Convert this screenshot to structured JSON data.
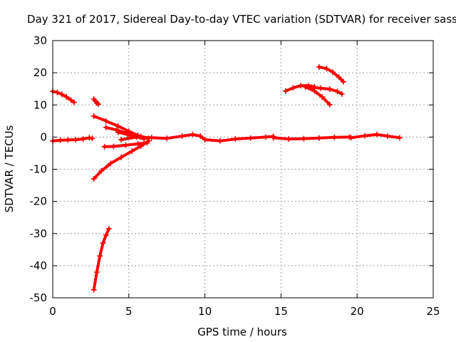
{
  "chart_data": {
    "type": "scatter",
    "title": "Day 321 of 2017, Sidereal Day-to-day VTEC variation (SDTVAR) for receiver sass",
    "xlabel": "GPS time / hours",
    "ylabel": "SDTVAR / TECUs",
    "xlim": [
      0,
      25
    ],
    "ylim": [
      -50,
      30
    ],
    "x_ticks": [
      0,
      5,
      10,
      15,
      20,
      25
    ],
    "y_ticks": [
      -50,
      -40,
      -30,
      -20,
      -10,
      0,
      10,
      20,
      30
    ],
    "x_tick_labels": [
      "0",
      "5",
      "10",
      "15",
      "20",
      "25"
    ],
    "y_tick_labels": [
      "-50",
      "-40",
      "-30",
      "-20",
      "-10",
      "0",
      "10",
      "20",
      "30"
    ],
    "grid": true,
    "marker": "plus",
    "color": "#ff0000",
    "series": [
      {
        "points": [
          [
            0.0,
            -1.2
          ],
          [
            0.5,
            -1.0
          ],
          [
            1.0,
            -0.9
          ],
          [
            1.5,
            -0.8
          ],
          [
            2.0,
            -0.6
          ],
          [
            2.4,
            -0.2
          ],
          [
            2.6,
            -0.4
          ]
        ]
      },
      {
        "points": [
          [
            0.0,
            14.2
          ],
          [
            0.3,
            13.9
          ],
          [
            0.6,
            13.3
          ],
          [
            0.9,
            12.5
          ],
          [
            1.2,
            11.5
          ],
          [
            1.4,
            10.8
          ]
        ]
      },
      {
        "points": [
          [
            2.7,
            11.8
          ],
          [
            2.8,
            11.2
          ],
          [
            2.9,
            10.6
          ],
          [
            3.0,
            10.2
          ]
        ]
      },
      {
        "points": [
          [
            2.7,
            -47.5
          ],
          [
            2.9,
            -42.0
          ],
          [
            3.1,
            -37.0
          ],
          [
            3.3,
            -33.0
          ],
          [
            3.5,
            -30.5
          ],
          [
            3.7,
            -28.5
          ]
        ]
      },
      {
        "points": [
          [
            2.7,
            -13.0
          ],
          [
            3.2,
            -10.5
          ],
          [
            3.8,
            -8.2
          ],
          [
            4.5,
            -6.3
          ],
          [
            5.2,
            -4.4
          ],
          [
            5.8,
            -2.8
          ],
          [
            6.3,
            -1.2
          ]
        ]
      },
      {
        "points": [
          [
            2.7,
            6.5
          ],
          [
            3.5,
            5.0
          ],
          [
            4.3,
            3.4
          ],
          [
            5.0,
            1.8
          ],
          [
            5.6,
            0.5
          ],
          [
            6.0,
            -0.4
          ]
        ]
      },
      {
        "points": [
          [
            3.5,
            3.0
          ],
          [
            4.2,
            2.2
          ],
          [
            5.0,
            1.0
          ],
          [
            5.8,
            0.2
          ],
          [
            6.3,
            -0.4
          ]
        ]
      },
      {
        "points": [
          [
            3.4,
            -3.0
          ],
          [
            4.0,
            -2.9
          ],
          [
            4.8,
            -2.5
          ],
          [
            5.6,
            -2.1
          ],
          [
            6.2,
            -1.8
          ]
        ]
      },
      {
        "points": [
          [
            4.3,
            1.5
          ],
          [
            4.9,
            0.8
          ],
          [
            5.5,
            0.1
          ],
          [
            6.0,
            -0.6
          ]
        ]
      },
      {
        "points": [
          [
            4.5,
            -0.8
          ],
          [
            5.5,
            0.0
          ],
          [
            6.5,
            -0.2
          ],
          [
            7.5,
            -0.4
          ],
          [
            8.5,
            0.3
          ],
          [
            9.2,
            0.8
          ],
          [
            9.7,
            0.3
          ],
          [
            10.0,
            -0.8
          ],
          [
            11.0,
            -1.2
          ],
          [
            12.0,
            -0.6
          ],
          [
            13.0,
            -0.3
          ],
          [
            14.0,
            0.0
          ],
          [
            14.5,
            0.2
          ]
        ]
      },
      {
        "points": [
          [
            14.5,
            -0.2
          ],
          [
            15.5,
            -0.6
          ],
          [
            16.5,
            -0.5
          ],
          [
            17.5,
            -0.3
          ],
          [
            18.5,
            -0.1
          ],
          [
            19.5,
            0.0
          ]
        ]
      },
      {
        "points": [
          [
            19.6,
            -0.2
          ],
          [
            20.5,
            0.4
          ],
          [
            21.3,
            0.8
          ],
          [
            22.0,
            0.3
          ],
          [
            22.8,
            -0.2
          ]
        ]
      },
      {
        "points": [
          [
            15.3,
            14.3
          ],
          [
            15.8,
            15.3
          ],
          [
            16.3,
            16.0
          ],
          [
            16.8,
            16.0
          ],
          [
            17.2,
            15.6
          ]
        ]
      },
      {
        "points": [
          [
            17.0,
            15.5
          ],
          [
            17.6,
            15.2
          ],
          [
            18.2,
            14.9
          ],
          [
            18.7,
            14.2
          ],
          [
            19.0,
            13.4
          ]
        ]
      },
      {
        "points": [
          [
            16.6,
            15.6
          ],
          [
            17.2,
            14.3
          ],
          [
            17.7,
            12.5
          ],
          [
            18.2,
            10.1
          ]
        ]
      },
      {
        "points": [
          [
            17.5,
            21.8
          ],
          [
            18.0,
            21.3
          ],
          [
            18.4,
            20.2
          ],
          [
            18.8,
            18.6
          ],
          [
            19.1,
            17.2
          ]
        ]
      }
    ]
  }
}
